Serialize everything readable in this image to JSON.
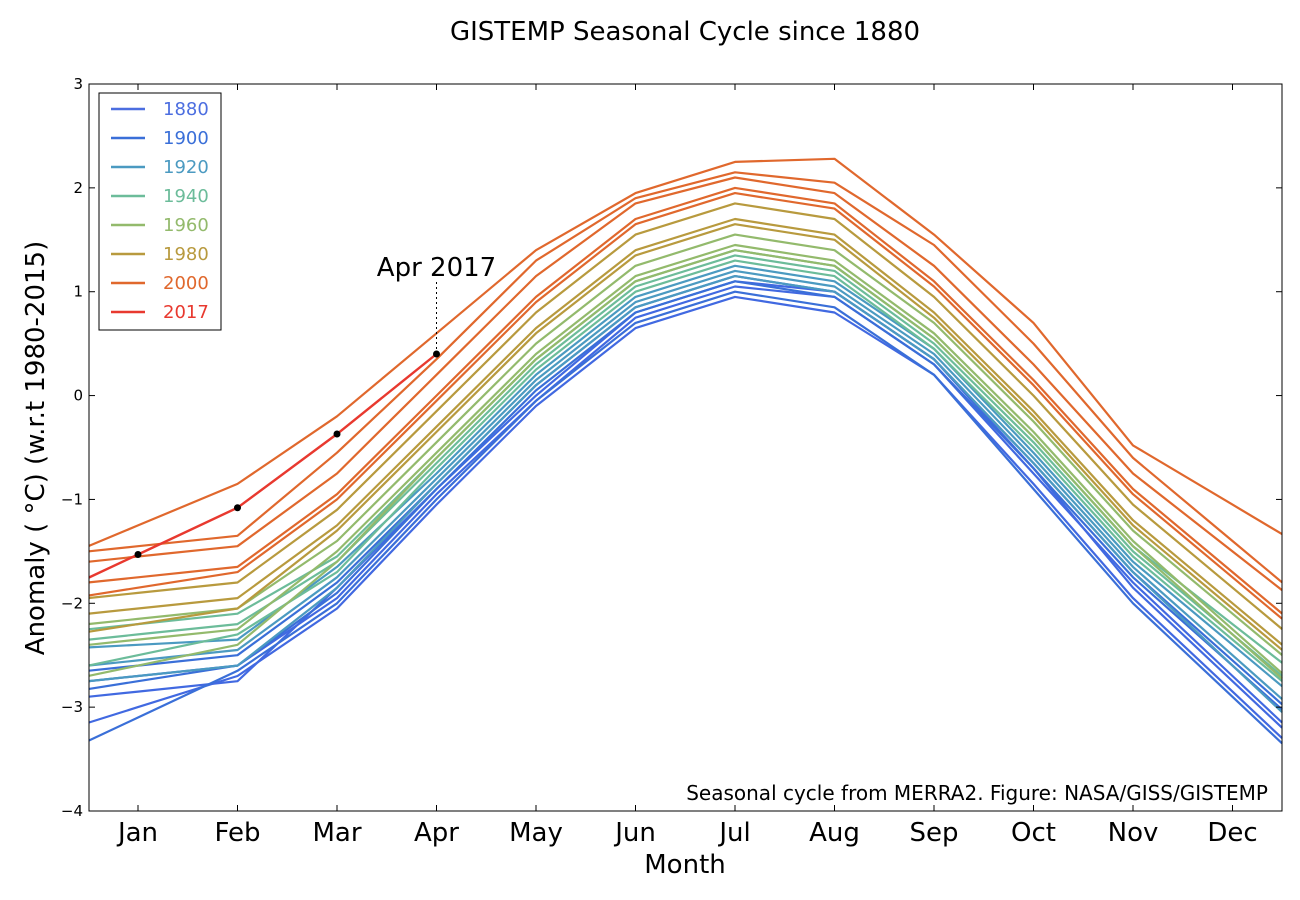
{
  "chart_data": {
    "type": "line",
    "title": "GISTEMP Seasonal Cycle since 1880",
    "xlabel": "Month",
    "ylabel": "Anomaly ( °C) (w.r.t 1980-2015)",
    "categories": [
      "Jan",
      "Feb",
      "Mar",
      "Apr",
      "May",
      "Jun",
      "Jul",
      "Aug",
      "Sep",
      "Oct",
      "Nov",
      "Dec"
    ],
    "yticks": [
      "3",
      "2",
      "1",
      "0",
      "−1",
      "−2",
      "−3",
      "−4"
    ],
    "ylim": [
      -4,
      3
    ],
    "grid": false,
    "legend_position": "upper-left",
    "legend": [
      {
        "label": "1880",
        "color": "#4c6ee0"
      },
      {
        "label": "1900",
        "color": "#3a6fd8"
      },
      {
        "label": "1920",
        "color": "#4b9ac1"
      },
      {
        "label": "1940",
        "color": "#6cbc9a"
      },
      {
        "label": "1960",
        "color": "#93ba6c"
      },
      {
        "label": "1980",
        "color": "#b89a3e"
      },
      {
        "label": "2000",
        "color": "#e0682d"
      },
      {
        "label": "2017",
        "color": "#e8392f"
      }
    ],
    "series": [
      {
        "group": "1880-1899",
        "color": "#4169e1",
        "values": [
          -2.7,
          -2.6,
          -1.95,
          -0.95,
          -0.05,
          0.75,
          1.05,
          0.95,
          0.3,
          -0.75,
          -1.8,
          -2.7
        ]
      },
      {
        "group": "1880-1899",
        "color": "#4169e1",
        "values": [
          -3.0,
          -2.7,
          -2.05,
          -1.05,
          -0.1,
          0.65,
          0.95,
          0.8,
          0.2,
          -0.85,
          -1.95,
          -2.85
        ]
      },
      {
        "group": "1880-1899",
        "color": "#4169e1",
        "values": [
          -2.85,
          -2.75,
          -1.85,
          -0.9,
          0.0,
          0.8,
          1.1,
          1.0,
          0.35,
          -0.7,
          -1.85,
          -2.75
        ]
      },
      {
        "group": "1900-1919",
        "color": "#3a6fd8",
        "values": [
          -3.1,
          -2.65,
          -2.0,
          -1.0,
          -0.05,
          0.7,
          1.0,
          0.85,
          0.2,
          -0.9,
          -2.0,
          -2.9
        ]
      },
      {
        "group": "1900-1919",
        "color": "#3a6fd8",
        "values": [
          -2.75,
          -2.6,
          -1.9,
          -0.9,
          0.05,
          0.8,
          1.1,
          0.95,
          0.3,
          -0.7,
          -1.75,
          -2.6
        ]
      },
      {
        "group": "1900-1919",
        "color": "#3a6fd8",
        "values": [
          -2.6,
          -2.5,
          -1.8,
          -0.85,
          0.1,
          0.85,
          1.15,
          1.0,
          0.35,
          -0.65,
          -1.7,
          -2.55
        ]
      },
      {
        "group": "1920-1939",
        "color": "#4b9ac1",
        "values": [
          -2.55,
          -2.45,
          -1.75,
          -0.8,
          0.15,
          0.9,
          1.2,
          1.05,
          0.4,
          -0.6,
          -1.65,
          -2.5
        ]
      },
      {
        "group": "1920-1939",
        "color": "#4b9ac1",
        "values": [
          -2.4,
          -2.35,
          -1.65,
          -0.75,
          0.2,
          0.95,
          1.25,
          1.1,
          0.45,
          -0.55,
          -1.6,
          -2.4
        ]
      },
      {
        "group": "1920-1939",
        "color": "#4b9ac1",
        "values": [
          -2.7,
          -2.6,
          -1.85,
          -0.85,
          0.1,
          0.85,
          1.15,
          1.0,
          0.35,
          -0.65,
          -1.7,
          -2.6
        ]
      },
      {
        "group": "1940-1959",
        "color": "#6cbc9a",
        "values": [
          -2.3,
          -2.2,
          -1.6,
          -0.65,
          0.3,
          1.05,
          1.35,
          1.2,
          0.5,
          -0.45,
          -1.5,
          -2.3
        ]
      },
      {
        "group": "1940-1959",
        "color": "#6cbc9a",
        "values": [
          -2.5,
          -2.3,
          -1.7,
          -0.7,
          0.25,
          1.0,
          1.3,
          1.15,
          0.45,
          -0.5,
          -1.55,
          -2.35
        ]
      },
      {
        "group": "1940-1959",
        "color": "#6cbc9a",
        "values": [
          -2.2,
          -2.1,
          -1.55,
          -0.6,
          0.35,
          1.1,
          1.4,
          1.25,
          0.55,
          -0.4,
          -1.45,
          -2.2
        ]
      },
      {
        "group": "1960-1979",
        "color": "#93ba6c",
        "values": [
          -2.35,
          -2.25,
          -1.5,
          -0.55,
          0.4,
          1.15,
          1.45,
          1.3,
          0.6,
          -0.35,
          -1.4,
          -2.25
        ]
      },
      {
        "group": "1960-1979",
        "color": "#93ba6c",
        "values": [
          -2.6,
          -2.4,
          -1.6,
          -0.6,
          0.35,
          1.1,
          1.4,
          1.25,
          0.55,
          -0.4,
          -1.45,
          -2.3
        ]
      },
      {
        "group": "1960-1979",
        "color": "#93ba6c",
        "values": [
          -2.15,
          -2.05,
          -1.4,
          -0.45,
          0.5,
          1.25,
          1.55,
          1.4,
          0.7,
          -0.25,
          -1.3,
          -2.1
        ]
      },
      {
        "group": "1980-1999",
        "color": "#b89a3e",
        "values": [
          -2.05,
          -1.95,
          -1.25,
          -0.3,
          0.65,
          1.4,
          1.7,
          1.55,
          0.8,
          -0.15,
          -1.2,
          -2.0
        ]
      },
      {
        "group": "1980-1999",
        "color": "#b89a3e",
        "values": [
          -2.2,
          -2.05,
          -1.3,
          -0.35,
          0.6,
          1.35,
          1.65,
          1.5,
          0.75,
          -0.2,
          -1.25,
          -2.05
        ]
      },
      {
        "group": "1980-1999",
        "color": "#b89a3e",
        "values": [
          -1.9,
          -1.8,
          -1.1,
          -0.15,
          0.8,
          1.55,
          1.85,
          1.7,
          0.95,
          0.0,
          -1.05,
          -1.85
        ]
      },
      {
        "group": "2000-2016",
        "color": "#e0682d",
        "values": [
          -1.75,
          -1.65,
          -0.95,
          0.0,
          0.95,
          1.7,
          2.0,
          1.85,
          1.1,
          0.15,
          -0.9,
          -1.7
        ]
      },
      {
        "group": "2000-2016",
        "color": "#e0682d",
        "values": [
          -1.85,
          -1.7,
          -1.0,
          -0.05,
          0.9,
          1.65,
          1.95,
          1.8,
          1.05,
          0.1,
          -0.95,
          -1.75
        ]
      },
      {
        "group": "2000-2016",
        "color": "#e0682d",
        "values": [
          -1.55,
          -1.45,
          -0.75,
          0.2,
          1.15,
          1.85,
          2.1,
          1.95,
          1.25,
          0.3,
          -0.75,
          -1.5
        ]
      },
      {
        "group": "2000-2016",
        "color": "#e0682d",
        "values": [
          -1.25,
          -0.85,
          -0.2,
          0.6,
          1.4,
          1.95,
          2.25,
          2.28,
          1.55,
          0.7,
          -0.48,
          -1.05
        ]
      },
      {
        "group": "2000-2016",
        "color": "#e0682d",
        "values": [
          -1.45,
          -1.35,
          -0.55,
          0.35,
          1.3,
          1.9,
          2.15,
          2.05,
          1.45,
          0.5,
          -0.6,
          -1.4
        ]
      }
    ],
    "highlight": {
      "label": "2017",
      "color": "#e8392f",
      "values": [
        -1.53,
        -1.08,
        -0.37,
        0.4
      ]
    },
    "annotation": {
      "text": "Apr 2017",
      "x": "Apr",
      "y": 0.4
    },
    "credit": "Seasonal cycle from MERRA2. Figure: NASA/GISS/GISTEMP"
  }
}
